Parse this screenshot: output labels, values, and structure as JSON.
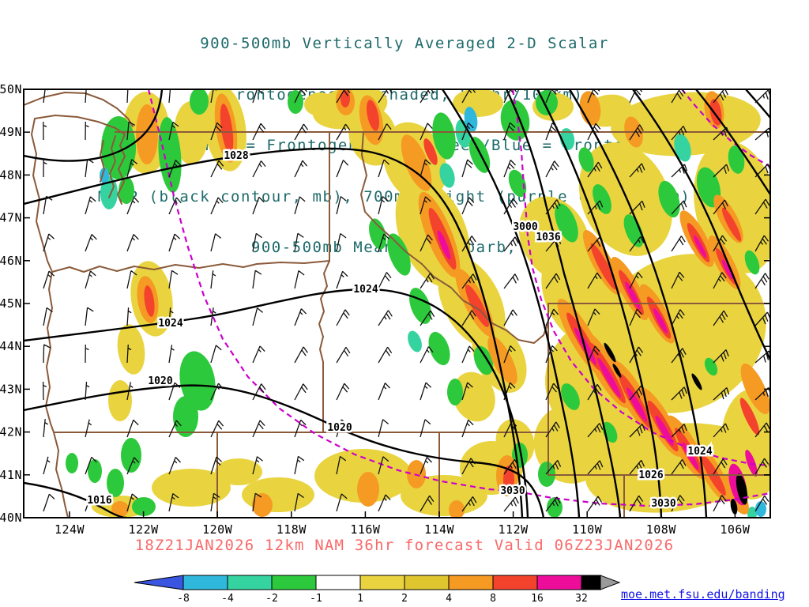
{
  "title": {
    "lines": [
      "900-500mb Vertically Averaged 2-D Scalar",
      "Frontogenesis (shaded, K/6hr/100km)",
      "Yellow/Red = Frontogenesis;  Green/Blue = Frontolysis",
      "MSLP (black contour, mb), 700mb height (purple contour, m) &",
      "900-500mb Mean Wind (barb, kt)"
    ]
  },
  "map": {
    "lat_labels": [
      "50N",
      "49N",
      "48N",
      "47N",
      "46N",
      "45N",
      "44N",
      "43N",
      "42N",
      "41N",
      "40N"
    ],
    "lon_labels": [
      "124W",
      "122W",
      "120W",
      "118W",
      "116W",
      "114W",
      "112W",
      "110W",
      "108W",
      "106W"
    ],
    "contour_labels": [
      {
        "field": "mslp",
        "text": "1028"
      },
      {
        "field": "mslp",
        "text": "1024"
      },
      {
        "field": "mslp",
        "text": "1024"
      },
      {
        "field": "mslp",
        "text": "1020"
      },
      {
        "field": "mslp",
        "text": "1020"
      },
      {
        "field": "mslp",
        "text": "1016"
      },
      {
        "field": "700mb_height",
        "text": "3000"
      },
      {
        "field": "mslp",
        "text": "1036"
      },
      {
        "field": "mslp",
        "text": "1024"
      },
      {
        "field": "mslp",
        "text": "1026"
      },
      {
        "field": "700mb_height",
        "text": "3030"
      },
      {
        "field": "700mb_height",
        "text": "3030"
      }
    ]
  },
  "caption": {
    "text": "18Z21JAN2026 12km NAM 36hr forecast Valid 06Z23JAN2026"
  },
  "colorbar": {
    "tick_labels": [
      "-8",
      "-4",
      "-2",
      "-1",
      "1",
      "2",
      "4",
      "8",
      "16",
      "32"
    ],
    "palette": {
      "blue": "#3a55e0",
      "cyan": "#2fb8dc",
      "teal": "#35d3a0",
      "green": "#2dc93c",
      "white": "#ffffff",
      "yellow": "#e9d43f",
      "yellow2": "#dfc52e",
      "orange": "#f59a23",
      "red": "#f4432c",
      "magenta": "#ee0d9b",
      "black": "#000000",
      "gray": "#9a9a9a"
    },
    "segment_order": [
      "cyan",
      "teal",
      "green",
      "white",
      "yellow",
      "yellow2",
      "orange",
      "red",
      "magenta",
      "black"
    ],
    "arrow_left": "blue",
    "arrow_right": "gray"
  },
  "credit": {
    "text": "moe.met.fsu.edu/banding"
  },
  "colors": {
    "title": "#1e6a6a",
    "caption": "#f96a6a",
    "link": "#1414e6",
    "state_borders": "#8a5a3a",
    "height_contours": "#cc00cc",
    "mslp_contours": "#000000"
  }
}
